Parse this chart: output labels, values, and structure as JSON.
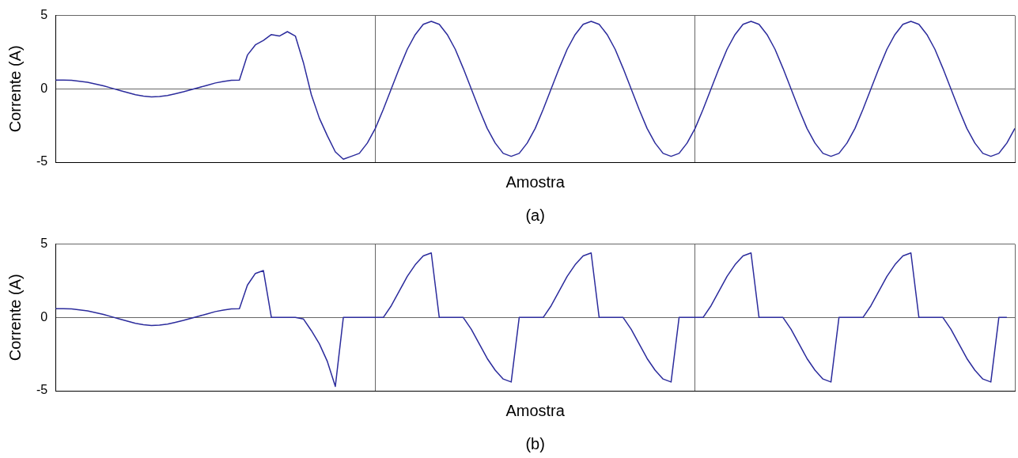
{
  "chart_data": [
    {
      "type": "line",
      "xlabel": "Amostra",
      "ylabel": "Corrente (A)",
      "annotations": [
        "(a)"
      ],
      "ylim": [
        -5,
        5
      ],
      "yticks": [
        -5,
        0,
        5
      ],
      "tick_labels": "y",
      "grid": true,
      "legend": false,
      "marker": "none",
      "line_style": "solid",
      "categories": [
        null,
        null,
        null,
        null,
        null,
        null,
        null,
        null,
        null,
        null,
        null,
        null,
        null,
        null,
        null,
        null,
        null,
        null,
        null,
        null,
        null,
        null,
        null,
        null,
        null,
        null,
        null,
        null,
        null,
        null,
        null,
        null,
        null,
        null,
        null,
        null,
        null,
        null,
        null,
        null,
        null,
        null,
        null,
        null,
        null,
        null,
        null,
        null,
        null,
        null,
        null,
        null,
        null,
        null,
        null,
        null,
        null,
        null,
        null,
        null,
        null,
        null,
        null,
        null,
        null,
        null,
        null,
        null,
        null,
        null,
        null,
        null,
        null,
        null,
        null,
        null,
        null,
        null,
        null,
        null,
        null,
        null,
        null,
        null,
        null,
        null,
        null,
        null,
        null,
        null,
        null,
        null,
        null,
        null,
        null,
        null,
        null,
        null,
        null,
        null,
        null,
        null,
        null,
        null,
        null,
        null,
        null,
        null,
        null,
        null,
        null,
        null,
        null,
        null,
        null,
        null,
        null,
        null,
        null,
        null,
        null
      ],
      "series": [
        {
          "color": "#2b2b9c",
          "values": [
            0.6,
            0.6,
            0.58,
            0.52,
            0.45,
            0.33,
            0.2,
            0.05,
            -0.1,
            -0.25,
            -0.4,
            -0.5,
            -0.55,
            -0.52,
            -0.45,
            -0.33,
            -0.2,
            -0.05,
            0.1,
            0.25,
            0.4,
            0.5,
            0.58,
            0.6,
            2.3,
            3.0,
            3.3,
            3.7,
            3.6,
            3.9,
            3.6,
            1.8,
            -0.4,
            -2.0,
            -3.2,
            -4.3,
            -4.8,
            -4.6,
            -4.4,
            -3.7,
            -2.7,
            -1.4,
            0,
            1.4,
            2.7,
            3.7,
            4.4,
            4.6,
            4.4,
            3.7,
            2.7,
            1.4,
            0,
            -1.4,
            -2.7,
            -3.7,
            -4.4,
            -4.6,
            -4.4,
            -3.7,
            -2.7,
            -1.4,
            0,
            1.4,
            2.7,
            3.7,
            4.4,
            4.6,
            4.4,
            3.7,
            2.7,
            1.4,
            0,
            -1.4,
            -2.7,
            -3.7,
            -4.4,
            -4.6,
            -4.4,
            -3.7,
            -2.7,
            -1.4,
            0,
            1.4,
            2.7,
            3.7,
            4.4,
            4.6,
            4.4,
            3.7,
            2.7,
            1.4,
            0,
            -1.4,
            -2.7,
            -3.7,
            -4.4,
            -4.6,
            -4.4,
            -3.7,
            -2.7,
            -1.4,
            0,
            1.4,
            2.7,
            3.7,
            4.4,
            4.6,
            4.4,
            3.7,
            2.7,
            1.4,
            0,
            -1.4,
            -2.7,
            -3.7,
            -4.4,
            -4.6,
            -4.4,
            -3.7,
            -2.7
          ]
        }
      ]
    },
    {
      "type": "line",
      "xlabel": "Amostra",
      "ylabel": "Corrente (A)",
      "annotations": [
        "(b)"
      ],
      "ylim": [
        -5,
        5
      ],
      "yticks": [
        -5,
        0,
        5
      ],
      "tick_labels": "y",
      "grid": true,
      "legend": false,
      "marker": "none",
      "line_style": "solid",
      "categories": [
        null,
        null,
        null,
        null,
        null,
        null,
        null,
        null,
        null,
        null,
        null,
        null,
        null,
        null,
        null,
        null,
        null,
        null,
        null,
        null,
        null,
        null,
        null,
        null,
        null,
        null,
        null,
        null,
        null,
        null,
        null,
        null,
        null,
        null,
        null,
        null,
        null,
        null,
        null,
        null,
        null,
        null,
        null,
        null,
        null,
        null,
        null,
        null,
        null,
        null,
        null,
        null,
        null,
        null,
        null,
        null,
        null,
        null,
        null,
        null,
        null,
        null,
        null,
        null,
        null,
        null,
        null,
        null,
        null,
        null,
        null,
        null,
        null,
        null,
        null,
        null,
        null,
        null,
        null,
        null,
        null,
        null,
        null,
        null,
        null,
        null,
        null,
        null,
        null,
        null,
        null,
        null,
        null,
        null,
        null,
        null,
        null,
        null,
        null,
        null,
        null,
        null,
        null,
        null,
        null,
        null,
        null,
        null,
        null,
        null,
        null,
        null,
        null,
        null,
        null,
        null,
        null,
        null,
        null,
        null,
        null
      ],
      "series": [
        {
          "color": "#2b2b9c",
          "values": [
            0.6,
            0.6,
            0.58,
            0.52,
            0.45,
            0.33,
            0.2,
            0.05,
            -0.1,
            -0.25,
            -0.4,
            -0.5,
            -0.55,
            -0.52,
            -0.45,
            -0.33,
            -0.2,
            -0.05,
            0.1,
            0.25,
            0.4,
            0.5,
            0.58,
            0.6,
            2.2,
            3.0,
            3.2,
            0,
            0,
            0,
            0,
            -0.1,
            -0.9,
            -1.8,
            -3.0,
            -4.7,
            0,
            0,
            0,
            0,
            0,
            0,
            0.8,
            1.8,
            2.8,
            3.6,
            4.2,
            4.4,
            0,
            0,
            0,
            0,
            -0.8,
            -1.8,
            -2.8,
            -3.6,
            -4.2,
            -4.4,
            0,
            0,
            0,
            0,
            0.8,
            1.8,
            2.8,
            3.6,
            4.2,
            4.4,
            0,
            0,
            0,
            0,
            -0.8,
            -1.8,
            -2.8,
            -3.6,
            -4.2,
            -4.4,
            0,
            0,
            0,
            0,
            0.8,
            1.8,
            2.8,
            3.6,
            4.2,
            4.4,
            0,
            0,
            0,
            0,
            -0.8,
            -1.8,
            -2.8,
            -3.6,
            -4.2,
            -4.4,
            0,
            0,
            0,
            0,
            0.8,
            1.8,
            2.8,
            3.6,
            4.2,
            4.4,
            0,
            0,
            0,
            0,
            -0.8,
            -1.8,
            -2.8,
            -3.6,
            -4.2,
            -4.4,
            0,
            0,
            null
          ]
        }
      ]
    }
  ]
}
